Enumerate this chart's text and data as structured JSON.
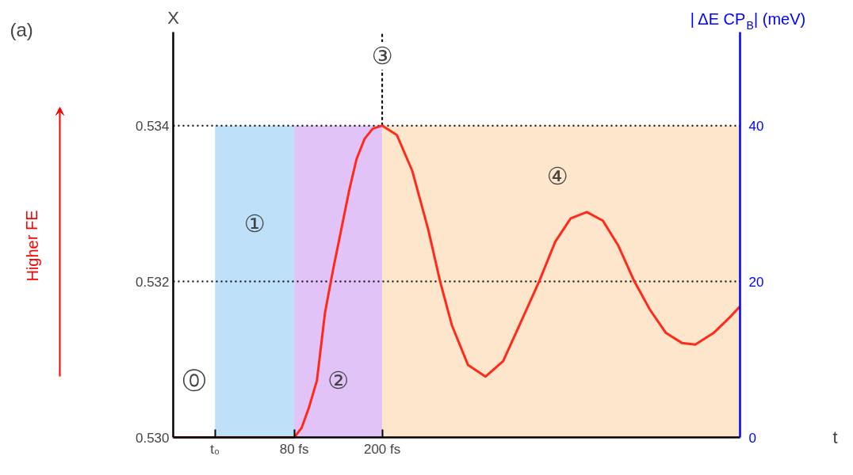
{
  "chart_data": {
    "type": "line",
    "ylabel": "X",
    "y2label": "| ΔE CP$_{B}$| (meV)",
    "xlabel": "t",
    "xlim": [
      -85,
      688
    ],
    "ylim": [
      0.53,
      0.5352
    ],
    "y2lim": [
      0,
      52
    ],
    "xticks": [
      {
        "value": -28,
        "label": "t₀"
      },
      {
        "value": 80,
        "label": "80 fs"
      },
      {
        "value": 200,
        "label": "200 fs"
      }
    ],
    "yticks": [
      {
        "value": 0.53,
        "label": "0.530"
      },
      {
        "value": 0.532,
        "label": "0.532"
      },
      {
        "value": 0.534,
        "label": "0.534"
      }
    ],
    "y2ticks": [
      0,
      20,
      40
    ],
    "grid": false,
    "marker": "none",
    "line_style": "solid",
    "series": [
      {
        "color": "#ff2a1a",
        "x": [
          -85,
          80,
          90,
          100,
          111,
          122,
          133,
          144,
          155,
          165,
          176,
          187,
          200,
          220,
          241,
          263,
          279,
          295,
          317,
          341,
          365,
          392,
          414,
          436,
          457,
          479,
          501,
          522,
          544,
          565,
          587,
          609,
          627,
          652,
          674,
          688
        ],
        "values": [
          0.53,
          0.53,
          0.53012,
          0.53038,
          0.53073,
          0.5316,
          0.53215,
          0.53266,
          0.53317,
          0.53357,
          0.53383,
          0.53396,
          0.534,
          0.53388,
          0.53342,
          0.53266,
          0.532,
          0.53144,
          0.53093,
          0.53078,
          0.53098,
          0.53154,
          0.532,
          0.53251,
          0.53281,
          0.53289,
          0.53278,
          0.53246,
          0.532,
          0.53164,
          0.53134,
          0.53121,
          0.53119,
          0.53134,
          0.53154,
          0.53168
        ]
      }
    ],
    "ref_lines": [
      {
        "axis": "y",
        "value": 0.534,
        "line_style": "dotted",
        "color": "#000000"
      },
      {
        "axis": "y",
        "value": 0.532,
        "line_style": "dotted",
        "color": "#000000"
      },
      {
        "axis": "x",
        "value": 200,
        "line_style": "dashed",
        "color": "#000000"
      }
    ],
    "bands": [
      {
        "axis": "x",
        "from": -28,
        "to": 80,
        "color": "#b3dcf8"
      },
      {
        "axis": "x",
        "from": 80,
        "to": 200,
        "color": "#dcb8f6"
      },
      {
        "axis": "x",
        "from": 200,
        "to": 688,
        "color": "#fde2c2"
      }
    ],
    "annotations": [
      "(a)",
      "Higher FE",
      "⓪",
      "①",
      "②",
      "④",
      "③"
    ]
  }
}
